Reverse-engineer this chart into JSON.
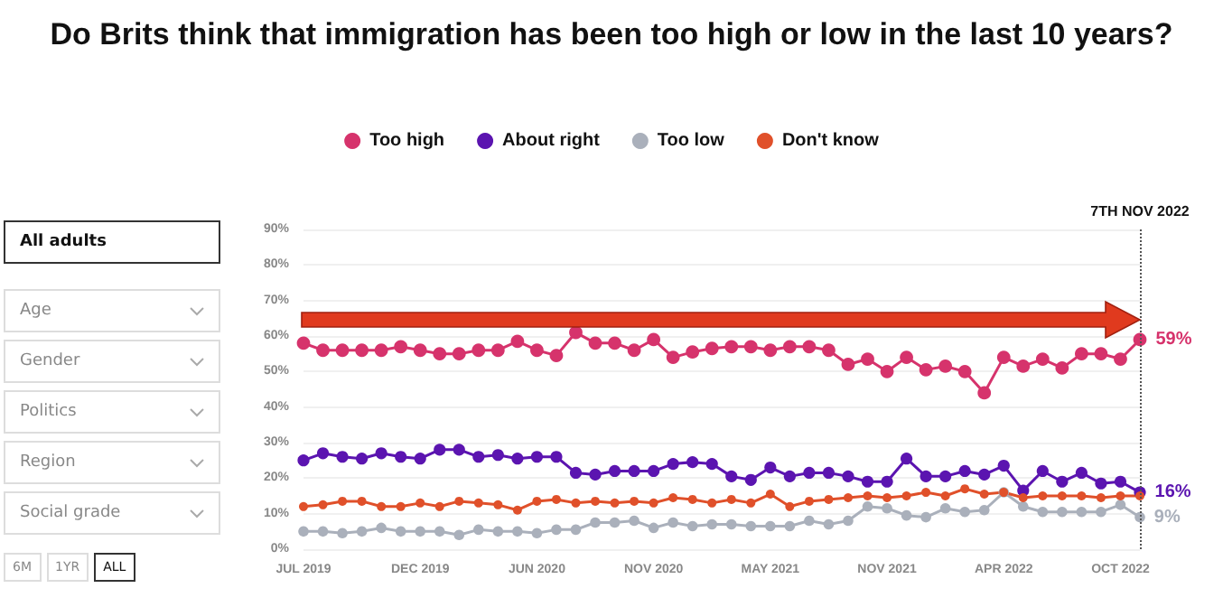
{
  "chart_data": {
    "type": "line",
    "title": "Do Brits think that immigration has been too high or low in the last 10 years?",
    "categories": [
      "JUL 2019",
      null,
      null,
      null,
      null,
      null,
      "DEC 2019",
      null,
      null,
      null,
      null,
      null,
      "JUN 2020",
      null,
      null,
      null,
      null,
      null,
      "NOV 2020",
      null,
      null,
      null,
      null,
      null,
      "MAY 2021",
      null,
      null,
      null,
      null,
      null,
      "NOV 2021",
      null,
      null,
      null,
      null,
      null,
      "APR 2022",
      null,
      null,
      null,
      null,
      null,
      "OCT 2022",
      null
    ],
    "series": [
      {
        "name": "Too high",
        "color": "#d6336c",
        "values": [
          58,
          56,
          56,
          56,
          56,
          57,
          56,
          55,
          55,
          56,
          56,
          58.5,
          56,
          54.5,
          61,
          58,
          58,
          56,
          59,
          54,
          55.5,
          56.5,
          57,
          57,
          56,
          57,
          57,
          56,
          52,
          53.5,
          50,
          54,
          50.5,
          51.5,
          50,
          44,
          54,
          51.5,
          53.5,
          51,
          55,
          55,
          53.5,
          59
        ],
        "value_labels": [
          null,
          null,
          null,
          null,
          null,
          null,
          null,
          null,
          null,
          null,
          null,
          null,
          null,
          null,
          null,
          null,
          null,
          null,
          null,
          null,
          null,
          null,
          null,
          null,
          null,
          null,
          null,
          null,
          null,
          null,
          null,
          null,
          null,
          null,
          null,
          null,
          null,
          null,
          null,
          null,
          null,
          null,
          null,
          "59%"
        ]
      },
      {
        "name": "About right",
        "color": "#5b14b0",
        "values": [
          25,
          27,
          26,
          25.5,
          27,
          26,
          25.5,
          28,
          28,
          26,
          26.5,
          25.5,
          26,
          26,
          21.5,
          21,
          22,
          22,
          22,
          24,
          24.5,
          24,
          20.5,
          19.5,
          23,
          20.5,
          21.5,
          21.5,
          20.5,
          19,
          19,
          25.5,
          20.5,
          20.5,
          22,
          21,
          23.5,
          16.5,
          22,
          19,
          21.5,
          18.5,
          19,
          16
        ],
        "value_labels": [
          null,
          null,
          null,
          null,
          null,
          null,
          null,
          null,
          null,
          null,
          null,
          null,
          null,
          null,
          null,
          null,
          null,
          null,
          null,
          null,
          null,
          null,
          null,
          null,
          null,
          null,
          null,
          null,
          null,
          null,
          null,
          null,
          null,
          null,
          null,
          null,
          null,
          null,
          null,
          null,
          null,
          null,
          null,
          "16%"
        ]
      },
      {
        "name": "Too low",
        "color": "#aab0bb",
        "values": [
          5,
          5,
          4.5,
          5,
          6,
          5,
          5,
          5,
          4,
          5.5,
          5,
          5,
          4.5,
          5.5,
          5.5,
          7.5,
          7.5,
          8,
          6,
          7.5,
          6.5,
          7,
          7,
          6.5,
          6.5,
          6.5,
          8,
          7,
          8,
          12,
          11.5,
          9.5,
          9,
          11.5,
          10.5,
          11,
          16,
          12,
          10.5,
          10.5,
          10.5,
          10.5,
          12.5,
          9
        ],
        "value_labels": [
          null,
          null,
          null,
          null,
          null,
          null,
          null,
          null,
          null,
          null,
          null,
          null,
          null,
          null,
          null,
          null,
          null,
          null,
          null,
          null,
          null,
          null,
          null,
          null,
          null,
          null,
          null,
          null,
          null,
          null,
          null,
          null,
          null,
          null,
          null,
          null,
          null,
          null,
          null,
          null,
          null,
          null,
          null,
          "9%"
        ]
      },
      {
        "name": "Don't know",
        "color": "#e0502a",
        "values": [
          12,
          12.5,
          13.5,
          13.5,
          12,
          12,
          13,
          12,
          13.5,
          13,
          12.5,
          11,
          13.5,
          14,
          13,
          13.5,
          13,
          13.5,
          13,
          14.5,
          14,
          13,
          14,
          13,
          15.5,
          12,
          13.5,
          14,
          14.5,
          15,
          14.5,
          15,
          16,
          15,
          17,
          15.5,
          16,
          14.5,
          15,
          15,
          15,
          14.5,
          15,
          15
        ]
      }
    ],
    "ylim": [
      0,
      90
    ],
    "yticks": [
      {
        "value": 0,
        "label": "0%"
      },
      {
        "value": 10,
        "label": "10%"
      },
      {
        "value": 20,
        "label": "20%"
      },
      {
        "value": 30,
        "label": "30%"
      },
      {
        "value": 40,
        "label": "40%"
      },
      {
        "value": 50,
        "label": "50%"
      },
      {
        "value": 60,
        "label": "60%"
      },
      {
        "value": 70,
        "label": "70%"
      },
      {
        "value": 80,
        "label": "80%"
      },
      {
        "value": 90,
        "label": "90%"
      }
    ],
    "grid": "y",
    "legend": "top",
    "marker": "circle",
    "line_style": "solid",
    "ref_lines": [
      {
        "axis": "x",
        "label": "7TH NOV 2022",
        "line_style": "dotted",
        "color": "#555555"
      }
    ],
    "annotations": [
      "All adults",
      "Age",
      "Gender",
      "Politics",
      "Region",
      "Social grade",
      "6M",
      "1YR",
      "ALL"
    ]
  }
}
